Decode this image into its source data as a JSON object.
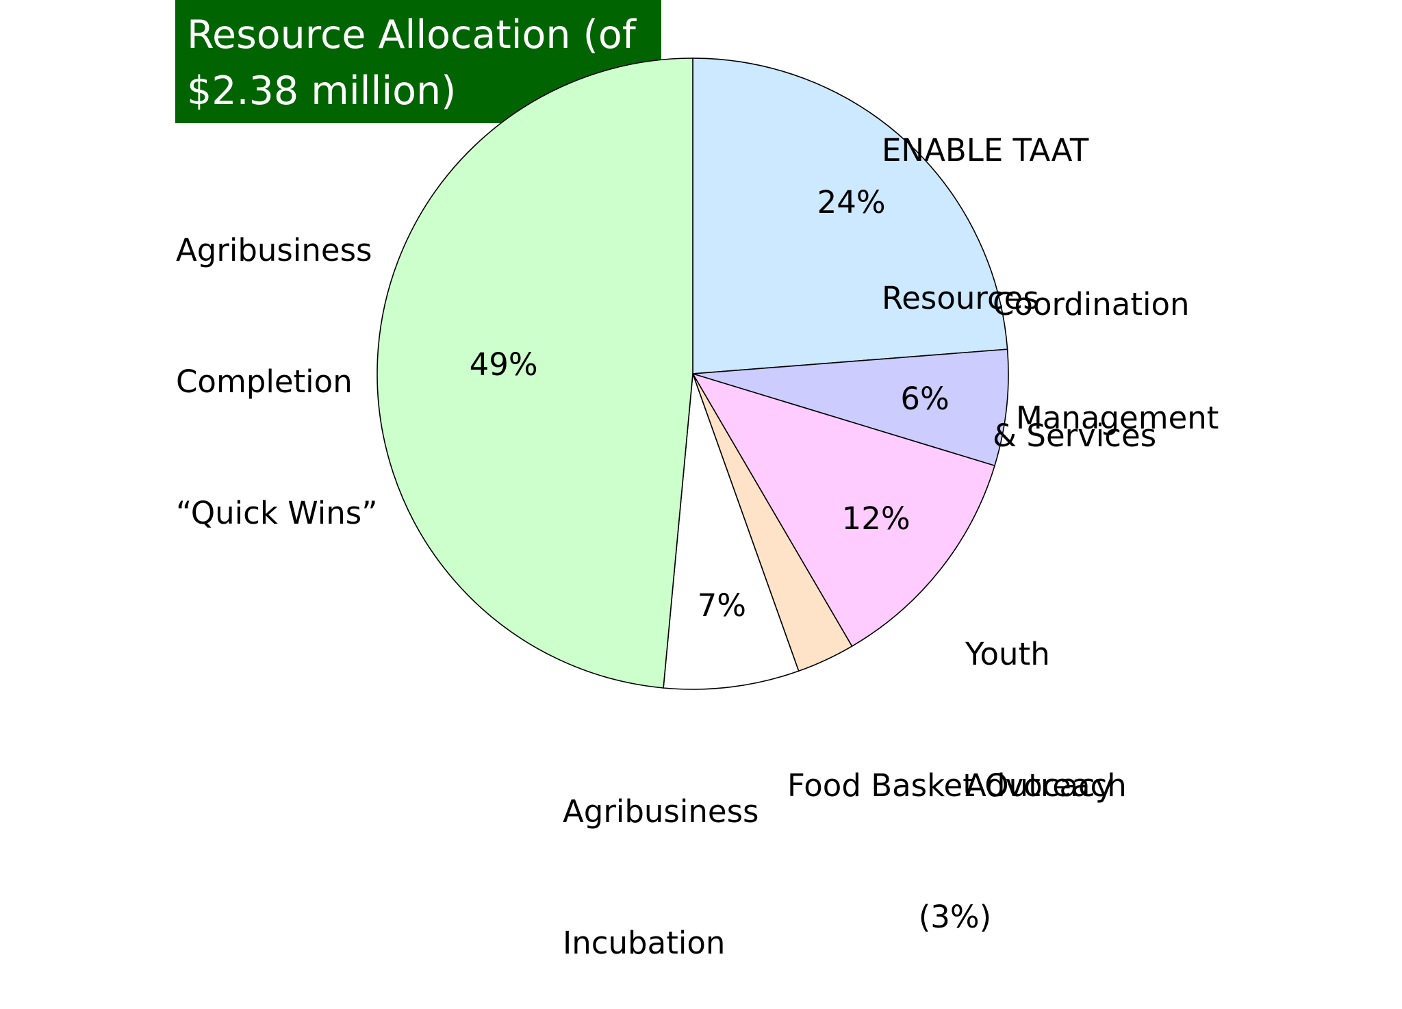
{
  "chart_data": {
    "type": "pie",
    "title": "Resource Allocation (of $2.38 million)",
    "slices": [
      {
        "label": "ENABLE TAAT Resources Coordination & Services",
        "value": 24,
        "value_label": "24%",
        "color": "#cce9ff"
      },
      {
        "label": "Management",
        "value": 6,
        "value_label": "6%",
        "color": "#ccccff"
      },
      {
        "label": "Youth Advocacy",
        "value": 12,
        "value_label": "12%",
        "color": "#ffccff"
      },
      {
        "label": "Food Basket Outreach (3%)",
        "value": 3,
        "value_label": "",
        "color": "#ffe3c8"
      },
      {
        "label": "Agribusiness Incubation",
        "value": 7,
        "value_label": "7%",
        "color": "#ffffff"
      },
      {
        "label": "Agribusiness Completion “Quick Wins”",
        "value": 49,
        "value_label": "49%",
        "color": "#ccffcc"
      }
    ]
  },
  "labels": {
    "title_line1": "Resource Allocation (of",
    "title_line2": "$2.38 million)",
    "enable_line1": "ENABLE TAAT",
    "enable_line2": "Resources",
    "coord_line1": "Coordination",
    "coord_line2": "& Services",
    "management": "Management",
    "youth_line1": "Youth",
    "youth_line2": "Advocacy",
    "food_line1": "Food Basket Outreach",
    "food_line2": "(3%)",
    "incubation_line1": "Agribusiness",
    "incubation_line2": "Incubation",
    "completion_line1": "Agribusiness",
    "completion_line2": "Completion",
    "completion_line3": "“Quick Wins”"
  },
  "colors": {
    "title_bg": "#006400",
    "title_text": "#ffffff",
    "outline": "#000000"
  }
}
